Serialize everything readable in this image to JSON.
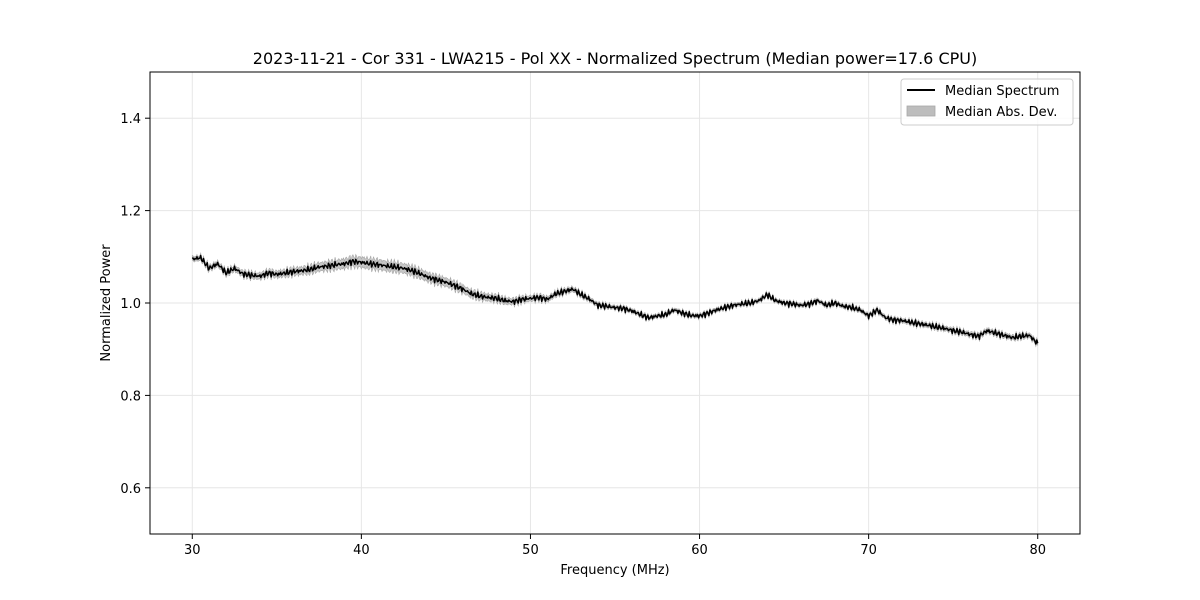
{
  "chart_data": {
    "type": "line",
    "title": "2023-11-21 - Cor 331 - LWA215 - Pol XX - Normalized Spectrum (Median power=17.6 CPU)",
    "xlabel": "Frequency (MHz)",
    "ylabel": "Normalized Power",
    "xlim": [
      27.5,
      82.5
    ],
    "ylim": [
      0.5,
      1.5
    ],
    "xticks": [
      30,
      40,
      50,
      60,
      70,
      80
    ],
    "yticks": [
      0.6,
      0.8,
      1.0,
      1.2,
      1.4
    ],
    "xtick_labels": [
      "30",
      "40",
      "50",
      "60",
      "70",
      "80"
    ],
    "ytick_labels": [
      "0.6",
      "0.8",
      "1.0",
      "1.2",
      "1.4"
    ],
    "grid": true,
    "legend_position": "top-right",
    "legend": [
      {
        "label": "Median Spectrum",
        "kind": "line",
        "color": "#000000"
      },
      {
        "label": "Median Abs. Dev.",
        "kind": "band",
        "color": "#bdbdbd"
      }
    ],
    "series": [
      {
        "name": "Median Spectrum",
        "x": [
          30,
          30.5,
          31,
          31.5,
          32,
          32.5,
          33,
          33.5,
          34,
          34.5,
          35,
          35.5,
          36,
          36.5,
          37,
          37.5,
          38,
          38.5,
          39,
          39.5,
          40,
          40.5,
          41,
          41.5,
          42,
          42.5,
          43,
          43.5,
          44,
          44.5,
          45,
          45.5,
          46,
          46.5,
          47,
          47.5,
          48,
          48.5,
          49,
          49.5,
          50,
          50.5,
          51,
          51.5,
          52,
          52.5,
          53,
          53.5,
          54,
          54.5,
          55,
          55.5,
          56,
          56.5,
          57,
          57.5,
          58,
          58.5,
          59,
          59.5,
          60,
          60.5,
          61,
          61.5,
          62,
          62.5,
          63,
          63.5,
          64,
          64.5,
          65,
          65.5,
          66,
          66.5,
          67,
          67.5,
          68,
          68.5,
          69,
          69.5,
          70,
          70.5,
          71,
          71.5,
          72,
          72.5,
          73,
          73.5,
          74,
          74.5,
          75,
          75.5,
          76,
          76.5,
          77,
          77.5,
          78,
          78.5,
          79,
          79.5,
          80
        ],
        "y": [
          1.095,
          1.098,
          1.075,
          1.085,
          1.065,
          1.075,
          1.063,
          1.06,
          1.058,
          1.065,
          1.062,
          1.065,
          1.068,
          1.07,
          1.073,
          1.078,
          1.08,
          1.083,
          1.085,
          1.09,
          1.088,
          1.085,
          1.083,
          1.08,
          1.078,
          1.075,
          1.07,
          1.063,
          1.055,
          1.05,
          1.045,
          1.038,
          1.03,
          1.02,
          1.015,
          1.012,
          1.01,
          1.005,
          1.003,
          1.008,
          1.01,
          1.012,
          1.008,
          1.02,
          1.025,
          1.03,
          1.018,
          1.008,
          0.995,
          0.993,
          0.99,
          0.988,
          0.983,
          0.975,
          0.968,
          0.972,
          0.975,
          0.985,
          0.978,
          0.973,
          0.972,
          0.978,
          0.985,
          0.99,
          0.995,
          0.998,
          1.0,
          1.005,
          1.018,
          1.005,
          1.0,
          0.998,
          0.995,
          0.998,
          1.005,
          0.995,
          1.0,
          0.993,
          0.99,
          0.985,
          0.972,
          0.985,
          0.968,
          0.963,
          0.962,
          0.958,
          0.955,
          0.952,
          0.948,
          0.945,
          0.94,
          0.937,
          0.932,
          0.928,
          0.94,
          0.935,
          0.93,
          0.925,
          0.928,
          0.93,
          0.912
        ]
      },
      {
        "name": "Median Abs. Dev.",
        "x": [
          30,
          35,
          40,
          43,
          45,
          48,
          50,
          55,
          60,
          65,
          70,
          75,
          80
        ],
        "dev": [
          0.005,
          0.007,
          0.011,
          0.01,
          0.009,
          0.007,
          0.006,
          0.004,
          0.004,
          0.004,
          0.004,
          0.005,
          0.005
        ]
      }
    ]
  }
}
